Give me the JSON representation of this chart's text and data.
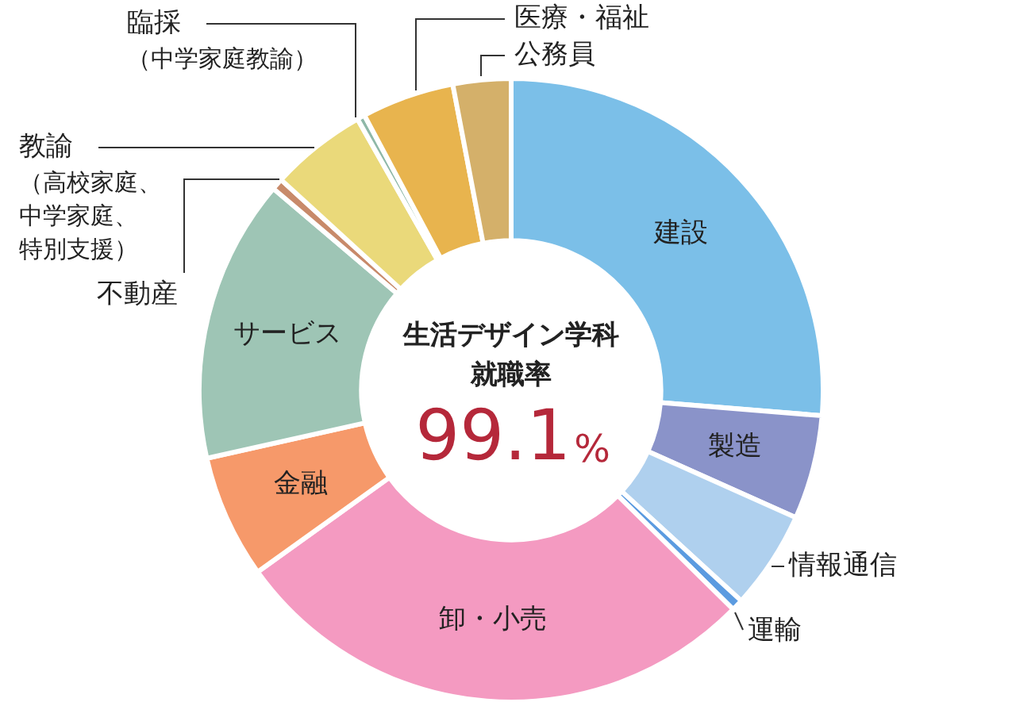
{
  "chart_data": {
    "type": "donut",
    "title": "生活デザイン学科就職率",
    "categories": [
      "建設",
      "製造",
      "情報通信",
      "運輸",
      "卸・小売",
      "金融",
      "サービス",
      "不動産",
      "教諭（高校家庭、中学家庭、特別支援）",
      "臨採（中学家庭教諭）",
      "医療・福祉",
      "公務員"
    ],
    "values": [
      26.3,
      5.4,
      5.1,
      0.6,
      27.7,
      6.4,
      14.7,
      0.6,
      5.0,
      0.4,
      4.8,
      3.0
    ],
    "colors": [
      "#7bbfe8",
      "#8a93c9",
      "#afd0ee",
      "#5b9be0",
      "#f49ac1",
      "#f6996a",
      "#9ec5b5",
      "#c88a6a",
      "#ead97a",
      "#8fb8a8",
      "#e8b44e",
      "#d4b06a"
    ],
    "annotations": [
      "99.1%"
    ]
  }
}
